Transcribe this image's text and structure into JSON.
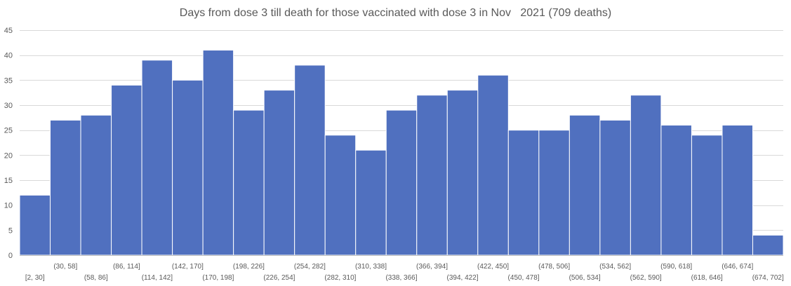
{
  "chart_data": {
    "type": "bar",
    "title": "Days from dose 3 till death for those vaccinated with dose 3 in Nov   2021 (709 deaths)",
    "xlabel": "",
    "ylabel": "",
    "ylim": [
      0,
      45
    ],
    "yticks": [
      0,
      5,
      10,
      15,
      20,
      25,
      30,
      35,
      40,
      45
    ],
    "grid": true,
    "legend": "none",
    "bar_color": "#5070BF",
    "categories": [
      "[2, 30]",
      "(30, 58]",
      "(58, 86]",
      "(86, 114]",
      "(114, 142]",
      "(142, 170]",
      "(170, 198]",
      "(198, 226]",
      "(226, 254]",
      "(254, 282]",
      "(282, 310]",
      "(310, 338]",
      "(338, 366]",
      "(366, 394]",
      "(394, 422]",
      "(422, 450]",
      "(450, 478]",
      "(478, 506]",
      "(506, 534]",
      "(534, 562]",
      "(562, 590]",
      "(590, 618]",
      "(618, 646]",
      "(646, 674]",
      "(674, 702]"
    ],
    "values": [
      12,
      27,
      28,
      34,
      39,
      35,
      41,
      29,
      33,
      38,
      24,
      21,
      29,
      32,
      33,
      36,
      25,
      25,
      28,
      27,
      32,
      26,
      24,
      26,
      4
    ]
  }
}
